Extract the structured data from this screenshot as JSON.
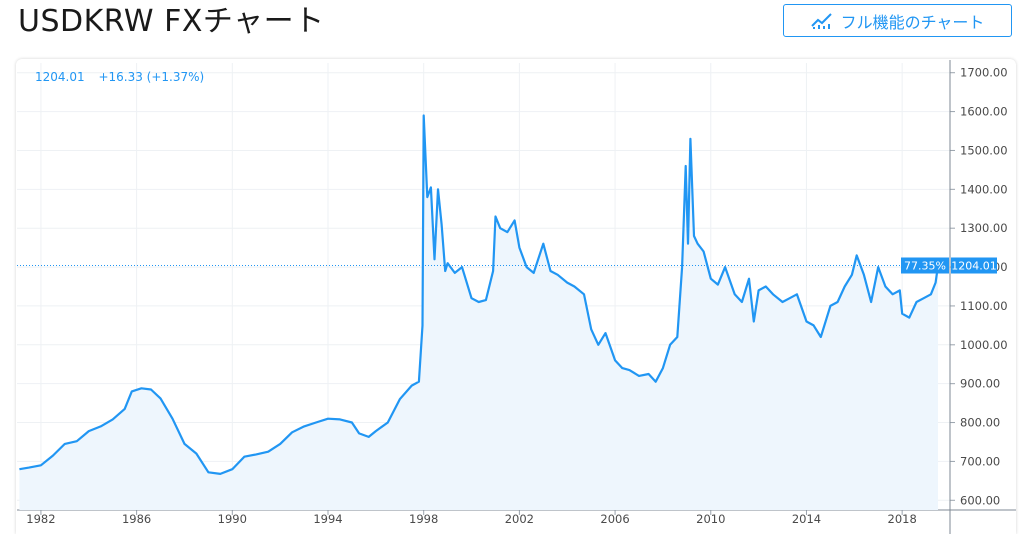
{
  "header": {
    "title": "USDKRW FXチャート",
    "full_chart_label": "フル機能のチャート",
    "full_chart_icon": "chart-line-icon"
  },
  "legend": {
    "last": "1204.01",
    "change": "+16.33 (+1.37%)"
  },
  "badges": {
    "percent": "77.35%",
    "price": "1204.01"
  },
  "colors": {
    "accent": "#2196f3",
    "line": "#2196f3",
    "area": "#eef6fd"
  },
  "chart_data": {
    "type": "area",
    "symbol": "USDKRW",
    "xlabel": "",
    "ylabel": "",
    "x_ticks": [
      "1982",
      "1986",
      "1990",
      "1994",
      "1998",
      "2002",
      "2006",
      "2010",
      "2014",
      "2018"
    ],
    "y_ticks": [
      "600.00",
      "700.00",
      "800.00",
      "900.00",
      "1000.00",
      "1100.00",
      "1200.00",
      "1300.00",
      "1400.00",
      "1500.00",
      "1600.00",
      "1700.00"
    ],
    "xlim": [
      1981.0,
      2020.0
    ],
    "ylim": [
      575,
      1725
    ],
    "last_value": 1204.01,
    "grid": true,
    "series": [
      {
        "x": [
          1981.1,
          1981.5,
          1982.0,
          1982.5,
          1983.0,
          1983.5,
          1984.0,
          1984.5,
          1985.0,
          1985.5,
          1985.8,
          1986.2,
          1986.6,
          1987.0,
          1987.5,
          1988.0,
          1988.5,
          1989.0,
          1989.5,
          1990.0,
          1990.5,
          1991.0,
          1991.5,
          1992.0,
          1992.5,
          1993.0,
          1993.5,
          1994.0,
          1994.5,
          1995.0,
          1995.3,
          1995.7,
          1996.0,
          1996.5,
          1997.0,
          1997.5,
          1997.8,
          1997.95,
          1998.0,
          1998.15,
          1998.3,
          1998.45,
          1998.6,
          1998.75,
          1998.9,
          1999.0,
          1999.3,
          1999.6,
          2000.0,
          2000.3,
          2000.6,
          2000.9,
          2001.0,
          2001.2,
          2001.5,
          2001.8,
          2002.0,
          2002.3,
          2002.6,
          2003.0,
          2003.3,
          2003.6,
          2004.0,
          2004.3,
          2004.7,
          2005.0,
          2005.3,
          2005.6,
          2006.0,
          2006.3,
          2006.6,
          2007.0,
          2007.4,
          2007.7,
          2008.0,
          2008.3,
          2008.6,
          2008.8,
          2008.95,
          2009.05,
          2009.15,
          2009.3,
          2009.45,
          2009.7,
          2010.0,
          2010.3,
          2010.6,
          2011.0,
          2011.3,
          2011.6,
          2011.8,
          2012.0,
          2012.3,
          2012.6,
          2013.0,
          2013.3,
          2013.6,
          2014.0,
          2014.3,
          2014.6,
          2015.0,
          2015.3,
          2015.6,
          2015.9,
          2016.1,
          2016.4,
          2016.7,
          2017.0,
          2017.3,
          2017.6,
          2017.9,
          2018.0,
          2018.3,
          2018.6,
          2018.9,
          2019.2,
          2019.4,
          2019.5
        ],
        "values": [
          680,
          684,
          690,
          715,
          745,
          752,
          778,
          790,
          808,
          835,
          880,
          888,
          885,
          862,
          810,
          745,
          720,
          672,
          668,
          680,
          712,
          718,
          725,
          745,
          775,
          790,
          800,
          810,
          808,
          800,
          772,
          763,
          778,
          800,
          860,
          895,
          905,
          1050,
          1590,
          1380,
          1405,
          1220,
          1400,
          1310,
          1190,
          1210,
          1185,
          1200,
          1120,
          1110,
          1115,
          1190,
          1330,
          1300,
          1290,
          1320,
          1250,
          1200,
          1185,
          1260,
          1190,
          1180,
          1160,
          1150,
          1130,
          1040,
          1000,
          1030,
          960,
          940,
          935,
          920,
          925,
          905,
          940,
          1000,
          1020,
          1200,
          1460,
          1260,
          1530,
          1280,
          1260,
          1240,
          1170,
          1155,
          1200,
          1130,
          1110,
          1170,
          1060,
          1140,
          1150,
          1130,
          1110,
          1120,
          1130,
          1060,
          1050,
          1020,
          1100,
          1110,
          1150,
          1180,
          1230,
          1180,
          1110,
          1200,
          1150,
          1130,
          1140,
          1080,
          1070,
          1110,
          1120,
          1130,
          1160,
          1204
        ]
      }
    ]
  }
}
